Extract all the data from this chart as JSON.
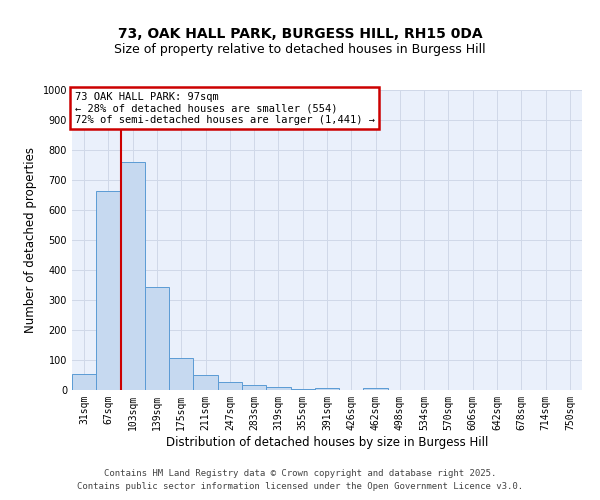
{
  "title1": "73, OAK HALL PARK, BURGESS HILL, RH15 0DA",
  "title2": "Size of property relative to detached houses in Burgess Hill",
  "xlabel": "Distribution of detached houses by size in Burgess Hill",
  "ylabel": "Number of detached properties",
  "bar_labels": [
    "31sqm",
    "67sqm",
    "103sqm",
    "139sqm",
    "175sqm",
    "211sqm",
    "247sqm",
    "283sqm",
    "319sqm",
    "355sqm",
    "391sqm",
    "426sqm",
    "462sqm",
    "498sqm",
    "534sqm",
    "570sqm",
    "606sqm",
    "642sqm",
    "678sqm",
    "714sqm",
    "750sqm"
  ],
  "bar_values": [
    55,
    665,
    760,
    345,
    108,
    50,
    27,
    17,
    10,
    5,
    8,
    0,
    8,
    0,
    0,
    0,
    0,
    0,
    0,
    0,
    0
  ],
  "bar_color": "#c6d9f0",
  "bar_edge_color": "#5b9bd5",
  "grid_color": "#d0d8e8",
  "background_color": "#eaf0fb",
  "vline_x": 1.5,
  "vline_color": "#cc0000",
  "annotation_text": "73 OAK HALL PARK: 97sqm\n← 28% of detached houses are smaller (554)\n72% of semi-detached houses are larger (1,441) →",
  "annotation_box_color": "#cc0000",
  "ylim": [
    0,
    1000
  ],
  "yticks": [
    0,
    100,
    200,
    300,
    400,
    500,
    600,
    700,
    800,
    900,
    1000
  ],
  "footer1": "Contains HM Land Registry data © Crown copyright and database right 2025.",
  "footer2": "Contains public sector information licensed under the Open Government Licence v3.0.",
  "title1_fontsize": 10,
  "title2_fontsize": 9,
  "tick_fontsize": 7,
  "ylabel_fontsize": 8.5,
  "xlabel_fontsize": 8.5,
  "annotation_fontsize": 7.5,
  "footer_fontsize": 6.5
}
